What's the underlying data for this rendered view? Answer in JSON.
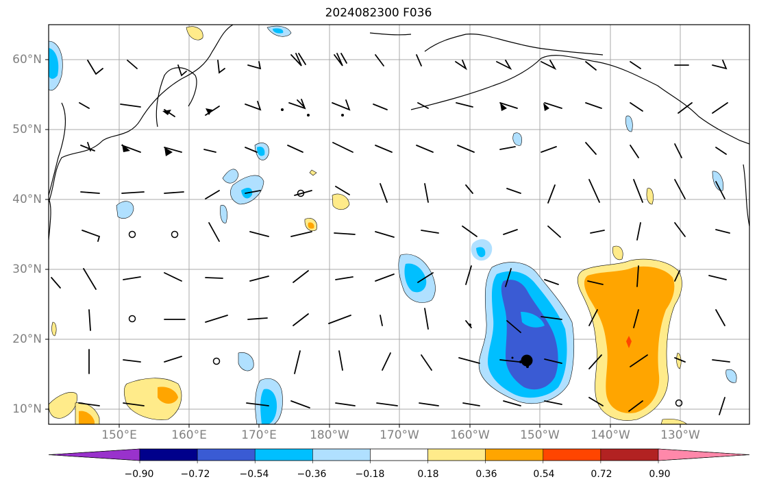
{
  "title": "2024082300 F036",
  "lat_labels": [
    "60°N",
    "50°N",
    "40°N",
    "30°N",
    "20°N",
    "10°N"
  ],
  "lon_labels": [
    "150°E",
    "160°E",
    "170°E",
    "180°W",
    "170°W",
    "160°W",
    "150°W",
    "140°W",
    "130°W"
  ],
  "colorbar": {
    "ticks": [
      "−0.90",
      "−0.72",
      "−0.54",
      "−0.36",
      "−0.18",
      "0.18",
      "0.36",
      "0.54",
      "0.72",
      "0.90"
    ],
    "colors": [
      "#9932cc",
      "#00008b",
      "#3a5bd4",
      "#00bfff",
      "#b0e0ff",
      "#ffffff",
      "#ffeb8a",
      "#ffa500",
      "#ff4500",
      "#b22222",
      "#ff88aa"
    ]
  },
  "contour_colors": {
    "pos_light": "#ffeb8a",
    "pos_mid": "#ffa500",
    "pos_high": "#ff4500",
    "neg_light": "#b0e0ff",
    "neg_mid": "#00bfff",
    "neg_strong": "#3a5bd4"
  }
}
